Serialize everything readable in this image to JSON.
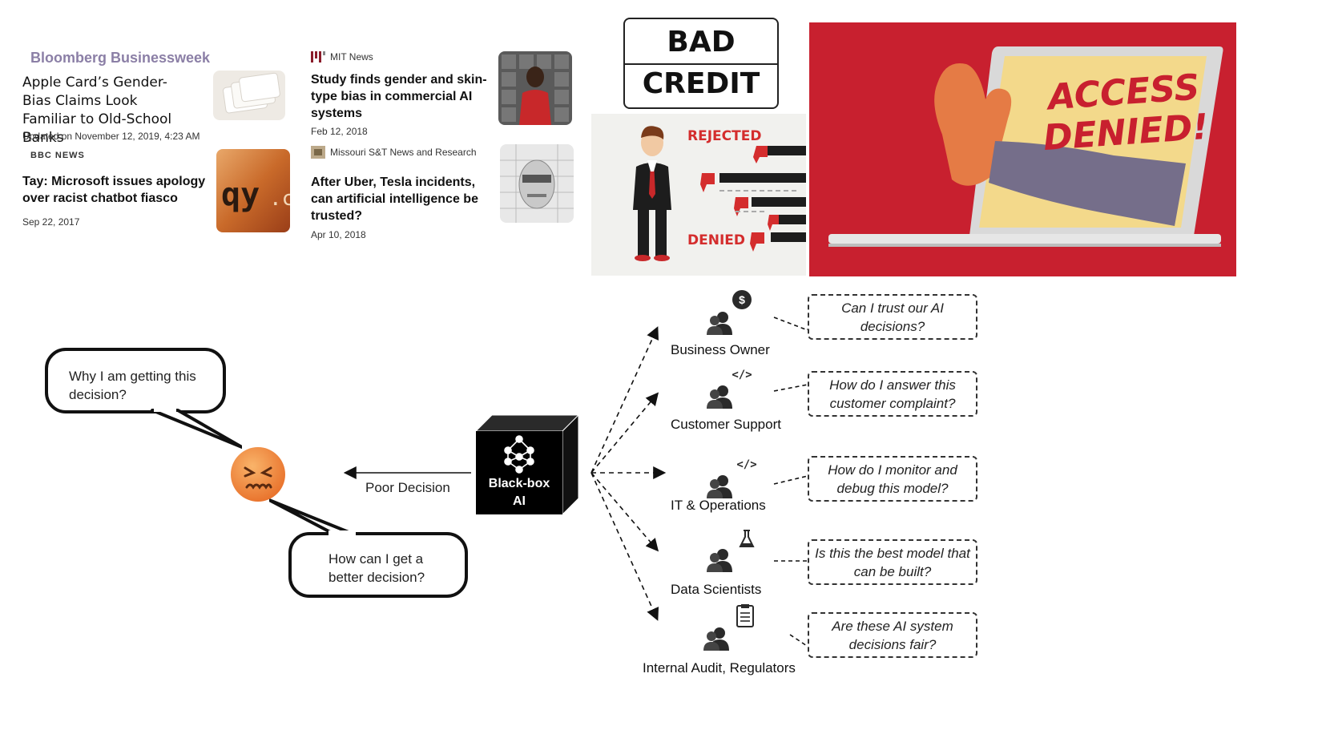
{
  "news": {
    "bloomberg": {
      "source": "Bloomberg Businessweek",
      "headline": "Apple Card’s Gender-Bias Claims Look Familiar to Old-School Banks",
      "date": "Updated on November 12, 2019, 4:23 AM"
    },
    "bbc": {
      "source": "BBC NEWS",
      "headline": "Tay: Microsoft issues apology over racist chatbot fiasco",
      "date": "Sep 22, 2017"
    },
    "mit": {
      "source": "MIT News",
      "headline": "Study finds gender and skin-type bias in commercial AI systems",
      "date": "Feb 12, 2018"
    },
    "missouri": {
      "source": "Missouri S&T News and Research",
      "headline": "After Uber, Tesla incidents, can artificial intelligence be trusted?",
      "date": "Apr 10, 2018"
    }
  },
  "images": {
    "bad_credit": [
      "BAD",
      "CREDIT"
    ],
    "rejected": "REJECTED",
    "denied": "DENIED",
    "access_denied": [
      "ACCESS",
      "DENIED!"
    ]
  },
  "user": {
    "bubble1": "Why I am getting this decision?",
    "bubble2": "How can I get a better decision?",
    "arrow_label": "Poor Decision"
  },
  "blackbox": {
    "label_line1": "Black-box",
    "label_line2": "AI"
  },
  "stakeholders": [
    {
      "name": "Business Owner",
      "question": "Can I trust our AI decisions?"
    },
    {
      "name": "Customer Support",
      "question": "How do I answer this customer complaint?"
    },
    {
      "name": "IT & Operations",
      "question": "How do I monitor and debug this model?"
    },
    {
      "name": "Data Scientists",
      "question": "Is this the best model that can be built?"
    },
    {
      "name": "Internal Audit, Regulators",
      "question": "Are these AI system decisions fair?"
    }
  ],
  "colors": {
    "red_banner": "#c8202f",
    "laptop_screen": "#f3d98b",
    "access_text": "#c8202f",
    "emoji": "#f28a2c",
    "bloomberg": "#8b7fa6"
  }
}
